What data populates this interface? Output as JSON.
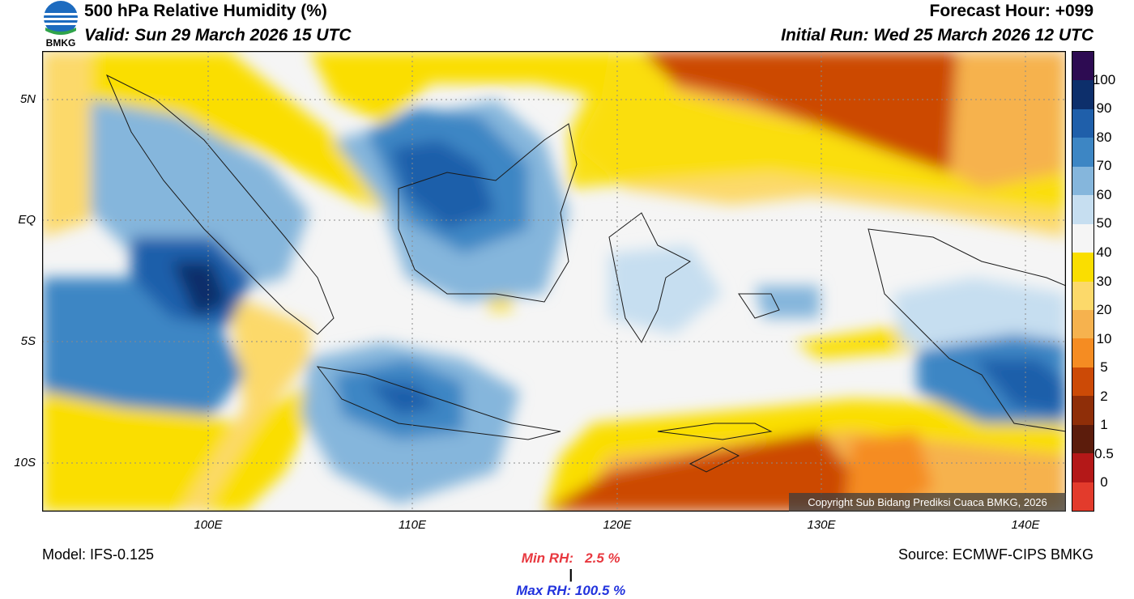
{
  "header": {
    "logo_text": "BMKG",
    "title": "500 hPa Relative Humidity (%)",
    "valid": "Valid: Sun 29 March 2026 15 UTC",
    "forecast_hour": "Forecast Hour: +099",
    "initial_run": "Initial Run: Wed 25 March 2026 12 UTC"
  },
  "map": {
    "lat_labels": [
      "5N",
      "EQ",
      "5S",
      "10S"
    ],
    "lon_labels": [
      "100E",
      "110E",
      "120E",
      "130E",
      "140E"
    ],
    "copyright": "Copyright Sub Bidang Prediksi Cuaca BMKG, 2026"
  },
  "colorbar": {
    "labels": [
      "100",
      "90",
      "80",
      "70",
      "60",
      "50",
      "40",
      "30",
      "20",
      "10",
      "5",
      "2",
      "1",
      "0.5",
      "0"
    ],
    "colors": [
      "#2d0b52",
      "#0d2f6b",
      "#1f5faa",
      "#3d86c4",
      "#85b6dc",
      "#c6def0",
      "#f5f5f5",
      "#fade00",
      "#fcd96a",
      "#f6b24e",
      "#f58c22",
      "#cc4a06",
      "#8f2e08",
      "#5c1c0c",
      "#b41818",
      "#e33b2c"
    ]
  },
  "stats": {
    "min_rh": "Min RH:   2.5 %",
    "separator": "|",
    "max_rh": "Max RH: 100.5 %",
    "min_color": "#e8383f",
    "max_color": "#2233dd"
  },
  "footer": {
    "model": "Model: IFS-0.125",
    "source": "Source: ECMWF-CIPS BMKG"
  }
}
